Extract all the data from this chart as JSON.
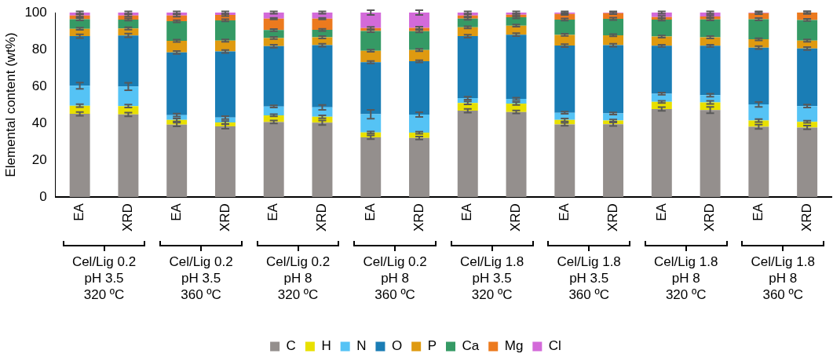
{
  "chart_data": {
    "type": "bar",
    "stacked": true,
    "ylabel": "Elemental content (wt%)",
    "categories": [
      "EA",
      "XRD",
      "EA",
      "XRD",
      "EA",
      "XRD",
      "EA",
      "XRD",
      "EA",
      "XRD",
      "EA",
      "XRD",
      "EA",
      "XRD",
      "EA",
      "XRD"
    ],
    "ylim": [
      0,
      100
    ],
    "yticks": [
      0,
      20,
      40,
      60,
      80,
      100
    ],
    "grid": false,
    "legend": "bottom",
    "series": [
      {
        "name": "C",
        "color": "#948f8d",
        "values": [
          45.1,
          44.8,
          39.3,
          38.3,
          40.7,
          40.3,
          32.4,
          32.0,
          46.8,
          46.1,
          39.4,
          39.5,
          47.7,
          47.2,
          38.1,
          37.7
        ],
        "errors": [
          1,
          1,
          1,
          1.2,
          0.8,
          1.2,
          1,
          0.8,
          1,
          0.8,
          0.8,
          1,
          1,
          1.7,
          1.2,
          1
        ]
      },
      {
        "name": "H",
        "color": "#e8e000",
        "values": [
          4.4,
          4.5,
          2.5,
          2.1,
          3.6,
          3.2,
          2.6,
          2.9,
          4.2,
          4.6,
          2.4,
          2.0,
          3.9,
          4.1,
          3.4,
          3.1
        ],
        "errors": [
          0.8,
          0.8,
          0.8,
          0.8,
          0.6,
          0.8,
          0.6,
          0.6,
          0.8,
          0.8,
          0.8,
          0.6,
          0.6,
          0.8,
          0.8,
          0.6
        ]
      },
      {
        "name": "N",
        "color": "#55c3f5",
        "values": [
          10.8,
          10.6,
          2.6,
          2.7,
          4.8,
          5.1,
          9.9,
          9.8,
          2.6,
          2.5,
          3.9,
          3.8,
          4.4,
          3.9,
          8.7,
          8.5
        ],
        "errors": [
          1.7,
          2,
          0.8,
          0.8,
          0.6,
          1.3,
          2.4,
          1.3,
          0.8,
          0.6,
          0.6,
          0.6,
          0.6,
          0.8,
          1.3,
          0.8
        ]
      },
      {
        "name": "O",
        "color": "#1a7db5",
        "values": [
          26.9,
          27.7,
          34.0,
          35.8,
          32.7,
          33.7,
          28.2,
          28.9,
          33.6,
          34.8,
          36.4,
          37.0,
          26.0,
          26.8,
          30.8,
          31.2
        ],
        "errors": [
          1,
          1,
          0.8,
          0.8,
          0.8,
          0.8,
          0.6,
          0.6,
          0.8,
          0.8,
          0.8,
          0.8,
          0.6,
          0.6,
          0.8,
          0.8
        ]
      },
      {
        "name": "P",
        "color": "#df9a10",
        "values": [
          4.0,
          3.8,
          6.3,
          5.9,
          4.4,
          4.3,
          6.2,
          6.1,
          4.8,
          4.9,
          5.8,
          5.4,
          5.0,
          4.6,
          4.5,
          4.3
        ],
        "errors": [
          0.6,
          0.6,
          0.6,
          0.6,
          0.6,
          0.6,
          0.6,
          0.6,
          0.6,
          0.6,
          0.6,
          0.6,
          0.6,
          0.6,
          0.6,
          0.6
        ]
      },
      {
        "name": "Ca",
        "color": "#359a65",
        "values": [
          5.2,
          4.8,
          10.6,
          11.0,
          4.3,
          4.0,
          10.7,
          10.2,
          4.7,
          4.5,
          8.3,
          8.9,
          9.2,
          9.7,
          10.9,
          11.2
        ],
        "errors": [
          0.6,
          0.6,
          0.6,
          0.6,
          0.6,
          0.6,
          0.6,
          0.6,
          0.6,
          0.6,
          0.6,
          0.6,
          0.6,
          0.6,
          0.6,
          0.6
        ]
      },
      {
        "name": "Mg",
        "color": "#ec7a1e",
        "values": [
          2.0,
          2.2,
          3.1,
          2.9,
          6.2,
          6.1,
          1.6,
          1.8,
          1.7,
          1.4,
          3.1,
          3.1,
          1.4,
          1.6,
          3.3,
          4.0
        ],
        "errors": [
          0.6,
          0.6,
          0.6,
          0.6,
          0.4,
          0.4,
          0.6,
          0.6,
          0.6,
          0.6,
          0.6,
          0.6,
          0.6,
          0.6,
          0.6,
          0.6
        ]
      },
      {
        "name": "Cl",
        "color": "#d36ad9",
        "values": [
          1.6,
          1.6,
          1.6,
          1.3,
          3.3,
          3.3,
          8.4,
          8.3,
          1.6,
          1.2,
          0.7,
          0.3,
          2.4,
          2.1,
          0.3,
          0
        ],
        "errors": [
          0.6,
          0.6,
          0.6,
          0.6,
          0.6,
          0.6,
          1.3,
          1.3,
          0.6,
          0.6,
          0.6,
          0.6,
          0.6,
          0.6,
          0.6,
          0.6
        ]
      }
    ],
    "annotations": [
      "Cel/Lig 0.2\npH 3.5\n320 ºC",
      "Cel/Lig 0.2\npH 3.5\n360 ºC",
      "Cel/Lig 0.2\npH 8\n320 ºC",
      "Cel/Lig 0.2\npH 8\n360 ºC",
      "Cel/Lig 1.8\npH 3.5\n320 ºC",
      "Cel/Lig 1.8\npH 3.5\n360 ºC",
      "Cel/Lig 1.8\npH 8\n320 ºC",
      "Cel/Lig 1.8\npH 8\n360 ºC"
    ]
  }
}
